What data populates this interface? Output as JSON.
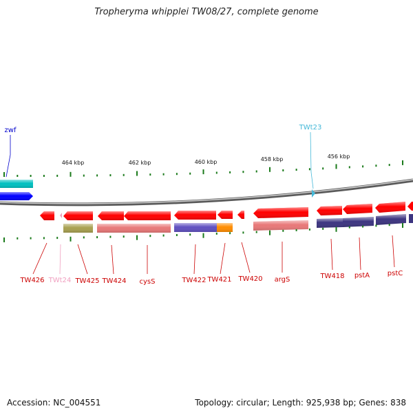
{
  "title": "Tropheryma whipplei TW08/27, complete genome",
  "footer": {
    "accession": "Accession: NC_004551",
    "summary": "Topology: circular; Length: 925,938 bp; Genes: 838"
  },
  "scale": {
    "labels": [
      "464 kbp",
      "462 kbp",
      "460 kbp",
      "458 kbp",
      "456 kbp"
    ]
  },
  "labels": {
    "top": [
      "zwf",
      "TWt23"
    ],
    "bottom": [
      "TW426",
      "TWt24",
      "TW425",
      "TW424",
      "cysS",
      "TW422",
      "TW421",
      "TW420",
      "argS",
      "TW418",
      "pstA",
      "pstC"
    ]
  },
  "colors": {
    "gene": "#ff0000",
    "trna": "#44b8d8",
    "trna_pink": "#f0a0c0",
    "label_red": "#cc0000",
    "label_blue": "#0000cc",
    "backbone": "#888888",
    "tick": "#1a7a1a",
    "cog_olive": "#a8a050",
    "cog_pink": "#e87878",
    "cog_purple": "#6050c0",
    "cog_orange": "#ff8c00",
    "cog_dark": "#3c3480",
    "teal": "#00c0c0",
    "blue": "#0000ff"
  }
}
